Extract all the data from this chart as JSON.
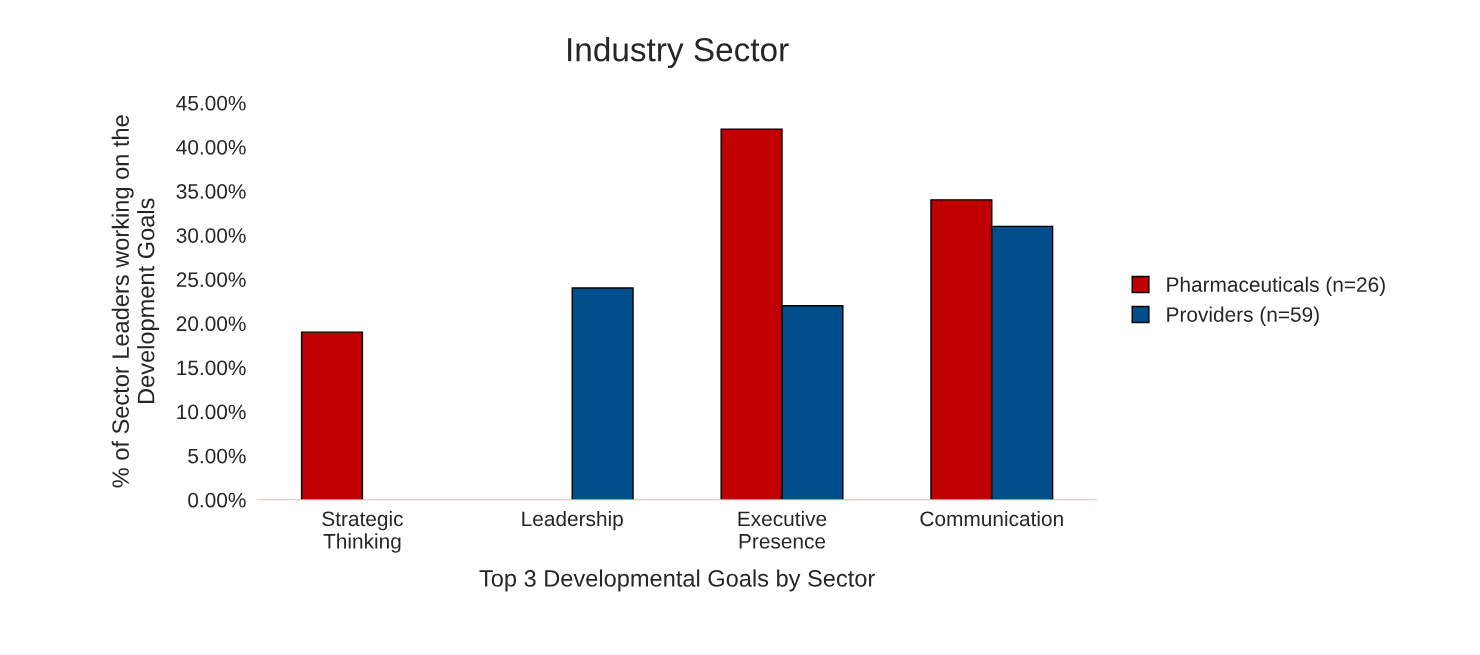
{
  "chart_data": {
    "type": "bar",
    "title": "Industry Sector",
    "xlabel": "Top 3 Developmental Goals by Sector",
    "ylabel": "% of Sector Leaders working on the\nDevelopment Goals",
    "categories": [
      "Strategic\nThinking",
      "Leadership",
      "Executive\nPresence",
      "Communication"
    ],
    "series": [
      {
        "name": "Pharmaceuticals (n=26)",
        "color": "#c00000",
        "values": [
          19,
          null,
          42,
          34
        ]
      },
      {
        "name": "Providers (n=59)",
        "color": "#004f8c",
        "values": [
          null,
          24,
          22,
          31
        ]
      }
    ],
    "ylim": [
      0,
      45
    ],
    "yticks": [
      {
        "value": 0,
        "label": "0.00%"
      },
      {
        "value": 5,
        "label": "5.00%"
      },
      {
        "value": 10,
        "label": "10.00%"
      },
      {
        "value": 15,
        "label": "15.00%"
      },
      {
        "value": 20,
        "label": "20.00%"
      },
      {
        "value": 25,
        "label": "25.00%"
      },
      {
        "value": 30,
        "label": "30.00%"
      },
      {
        "value": 35,
        "label": "35.00%"
      },
      {
        "value": 40,
        "label": "40.00%"
      },
      {
        "value": 45,
        "label": "45.00%"
      }
    ],
    "grid": false,
    "legend": "right"
  }
}
